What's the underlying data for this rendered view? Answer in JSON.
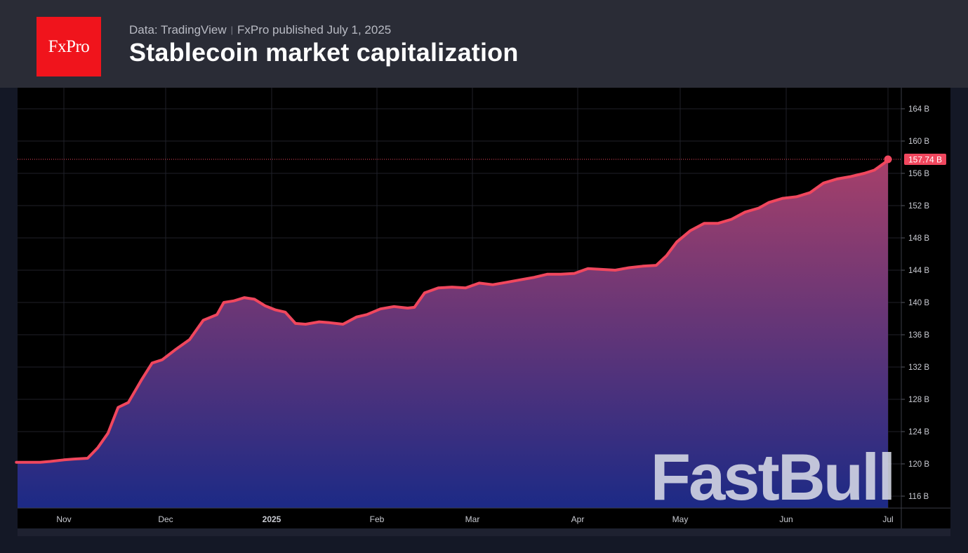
{
  "header": {
    "logo_text": "FxPro",
    "source": "Data: TradingView",
    "separator": "|",
    "publisher": "FxPro published",
    "date": "July 1, 2025",
    "title": "Stablecoin market capitalization"
  },
  "watermark": "FastBull",
  "colors": {
    "line": "#f0475e",
    "fill_top": "#a6406a",
    "fill_bottom": "#1c2a86",
    "price_label_bg": "#f0475e",
    "logo_bg": "#f0141c"
  },
  "chart_data": {
    "type": "area",
    "title": "Stablecoin market capitalization",
    "ylabel": "",
    "xlabel": "",
    "ylim": [
      114.5,
      166.5
    ],
    "y_ticks": [
      {
        "value": 164,
        "label": "164 B"
      },
      {
        "value": 160,
        "label": "160 B"
      },
      {
        "value": 156,
        "label": "156 B"
      },
      {
        "value": 152,
        "label": "152 B"
      },
      {
        "value": 148,
        "label": "148 B"
      },
      {
        "value": 144,
        "label": "144 B"
      },
      {
        "value": 140,
        "label": "140 B"
      },
      {
        "value": 136,
        "label": "136 B"
      },
      {
        "value": 132,
        "label": "132 B"
      },
      {
        "value": 128,
        "label": "128 B"
      },
      {
        "value": 124,
        "label": "124 B"
      },
      {
        "value": 120,
        "label": "120 B"
      },
      {
        "value": 116,
        "label": "116 B"
      }
    ],
    "x_ticks": [
      {
        "date": "2024-11-01",
        "label": "Nov",
        "bold": false
      },
      {
        "date": "2024-12-01",
        "label": "Dec",
        "bold": false
      },
      {
        "date": "2025-01-01",
        "label": "2025",
        "bold": true
      },
      {
        "date": "2025-02-01",
        "label": "Feb",
        "bold": false
      },
      {
        "date": "2025-03-01",
        "label": "Mar",
        "bold": false
      },
      {
        "date": "2025-04-01",
        "label": "Apr",
        "bold": false
      },
      {
        "date": "2025-05-01",
        "label": "May",
        "bold": false
      },
      {
        "date": "2025-06-01",
        "label": "Jun",
        "bold": false
      },
      {
        "date": "2025-07-01",
        "label": "Jul",
        "bold": false
      }
    ],
    "last_value_label": "157.74 B",
    "last_value": 157.74,
    "series": [
      {
        "values": [
          [
            "2024-10-18",
            120.2
          ],
          [
            "2024-10-22",
            120.2
          ],
          [
            "2024-10-25",
            120.2
          ],
          [
            "2024-10-28",
            120.3
          ],
          [
            "2024-11-01",
            120.5
          ],
          [
            "2024-11-04",
            120.6
          ],
          [
            "2024-11-08",
            120.7
          ],
          [
            "2024-11-11",
            122.0
          ],
          [
            "2024-11-14",
            123.8
          ],
          [
            "2024-11-17",
            127.0
          ],
          [
            "2024-11-20",
            127.6
          ],
          [
            "2024-11-24",
            130.5
          ],
          [
            "2024-11-27",
            132.5
          ],
          [
            "2024-11-30",
            132.9
          ],
          [
            "2024-12-04",
            134.2
          ],
          [
            "2024-12-08",
            135.4
          ],
          [
            "2024-12-12",
            137.8
          ],
          [
            "2024-12-16",
            138.5
          ],
          [
            "2024-12-18",
            140.0
          ],
          [
            "2024-12-21",
            140.2
          ],
          [
            "2024-12-24",
            140.6
          ],
          [
            "2024-12-27",
            140.4
          ],
          [
            "2024-12-30",
            139.6
          ],
          [
            "2025-01-02",
            139.1
          ],
          [
            "2025-01-05",
            138.8
          ],
          [
            "2025-01-08",
            137.4
          ],
          [
            "2025-01-11",
            137.3
          ],
          [
            "2025-01-15",
            137.6
          ],
          [
            "2025-01-18",
            137.5
          ],
          [
            "2025-01-22",
            137.3
          ],
          [
            "2025-01-26",
            138.2
          ],
          [
            "2025-01-29",
            138.5
          ],
          [
            "2025-02-02",
            139.2
          ],
          [
            "2025-02-06",
            139.5
          ],
          [
            "2025-02-10",
            139.3
          ],
          [
            "2025-02-12",
            139.4
          ],
          [
            "2025-02-15",
            141.2
          ],
          [
            "2025-02-19",
            141.8
          ],
          [
            "2025-02-23",
            141.9
          ],
          [
            "2025-02-27",
            141.8
          ],
          [
            "2025-03-03",
            142.4
          ],
          [
            "2025-03-07",
            142.2
          ],
          [
            "2025-03-11",
            142.5
          ],
          [
            "2025-03-15",
            142.8
          ],
          [
            "2025-03-19",
            143.1
          ],
          [
            "2025-03-23",
            143.5
          ],
          [
            "2025-03-27",
            143.5
          ],
          [
            "2025-03-31",
            143.6
          ],
          [
            "2025-04-04",
            144.2
          ],
          [
            "2025-04-08",
            144.1
          ],
          [
            "2025-04-12",
            144.0
          ],
          [
            "2025-04-16",
            144.3
          ],
          [
            "2025-04-20",
            144.5
          ],
          [
            "2025-04-24",
            144.6
          ],
          [
            "2025-04-27",
            145.8
          ],
          [
            "2025-04-30",
            147.5
          ],
          [
            "2025-05-04",
            148.9
          ],
          [
            "2025-05-08",
            149.8
          ],
          [
            "2025-05-12",
            149.8
          ],
          [
            "2025-05-16",
            150.3
          ],
          [
            "2025-05-20",
            151.2
          ],
          [
            "2025-05-24",
            151.7
          ],
          [
            "2025-05-27",
            152.4
          ],
          [
            "2025-05-31",
            152.9
          ],
          [
            "2025-06-04",
            153.1
          ],
          [
            "2025-06-08",
            153.6
          ],
          [
            "2025-06-12",
            154.8
          ],
          [
            "2025-06-16",
            155.3
          ],
          [
            "2025-06-20",
            155.6
          ],
          [
            "2025-06-24",
            156.0
          ],
          [
            "2025-06-27",
            156.4
          ],
          [
            "2025-06-30",
            157.3
          ],
          [
            "2025-07-01",
            157.74
          ]
        ]
      }
    ]
  }
}
